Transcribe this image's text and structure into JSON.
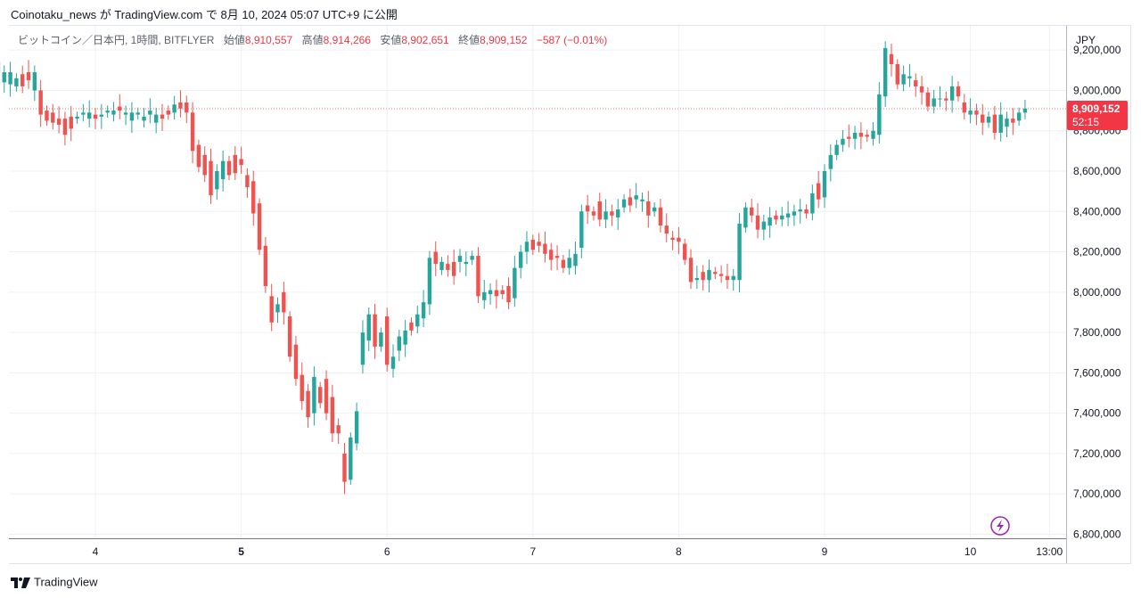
{
  "credit": "Coinotaku_news が TradingView.com で 8月 10, 2024 05:07 UTC+9 に公開",
  "legend": {
    "symbol": "ビットコイン／日本円, 1時間, BITFLYER",
    "open_label": "始値",
    "open": "8,910,557",
    "high_label": "高値",
    "high": "8,914,266",
    "low_label": "安値",
    "low": "8,902,651",
    "close_label": "終値",
    "close": "8,909,152",
    "change": "−587 (−0.01%)"
  },
  "currency": "JPY",
  "last_price_label": {
    "price": "8,909,152",
    "countdown": "52:15"
  },
  "brand": "TradingView",
  "colors": {
    "up": "#26a69a",
    "down": "#ef5350",
    "grid": "#eef0f4",
    "accent": "#9c27b0"
  },
  "chart_data": {
    "type": "candlestick",
    "y_ticks": [
      "9,200,000",
      "9,000,000",
      "8,800,000",
      "8,600,000",
      "8,400,000",
      "8,200,000",
      "8,000,000",
      "7,800,000",
      "7,600,000",
      "7,400,000",
      "7,200,000",
      "7,000,000",
      "6,800,000"
    ],
    "y_tick_values": [
      9200000,
      9000000,
      8800000,
      8600000,
      8400000,
      8200000,
      8000000,
      7800000,
      7600000,
      7400000,
      7200000,
      7000000,
      6800000
    ],
    "ylim": [
      6780000,
      9320000
    ],
    "x_ticks": [
      {
        "label": "4",
        "day": 4.0,
        "bold": false
      },
      {
        "label": "5",
        "day": 5.0,
        "bold": true
      },
      {
        "label": "6",
        "day": 6.0,
        "bold": false
      },
      {
        "label": "7",
        "day": 7.0,
        "bold": false
      },
      {
        "label": "8",
        "day": 8.0,
        "bold": false
      },
      {
        "label": "9",
        "day": 9.0,
        "bold": false
      },
      {
        "label": "10",
        "day": 10.0,
        "bold": false
      },
      {
        "label": "13:00",
        "day": 10.5417,
        "bold": false
      }
    ],
    "candle_points": [
      [
        9080000,
        9020000
      ],
      [
        9120000,
        9040000
      ],
      [
        9160000,
        9080000
      ],
      [
        9030000,
        9160000
      ],
      [
        9070000,
        9040000
      ],
      [
        9060000,
        9100000
      ],
      [
        9050000,
        9130000
      ],
      [
        9090000,
        9140000
      ],
      [
        9040000,
        9090000
      ],
      [
        9030000,
        9090000
      ],
      [
        9020000,
        9060000
      ],
      [
        9080000,
        9020000
      ],
      [
        9090000,
        9050000
      ],
      [
        9000000,
        9090000
      ],
      [
        9000000,
        8880000
      ],
      [
        8900000,
        8850000
      ],
      [
        8890000,
        8840000
      ],
      [
        8860000,
        8830000
      ],
      [
        8860000,
        8780000
      ],
      [
        8870000,
        8810000
      ],
      [
        8860000,
        8870000
      ],
      [
        8880000,
        8890000
      ],
      [
        8860000,
        8890000
      ],
      [
        8880000,
        8860000
      ],
      [
        8870000,
        8880000
      ],
      [
        8890000,
        8900000
      ],
      [
        8880000,
        8900000
      ],
      [
        8920000,
        8900000
      ],
      [
        8880000,
        8890000
      ],
      [
        8850000,
        8890000
      ],
      [
        8880000,
        8890000
      ],
      [
        8850000,
        8870000
      ],
      [
        8880000,
        8900000
      ],
      [
        8840000,
        8880000
      ],
      [
        8880000,
        8860000
      ],
      [
        8900000,
        8880000
      ],
      [
        8890000,
        8930000
      ],
      [
        8940000,
        8910000
      ],
      [
        8940000,
        8890000
      ],
      [
        8890000,
        8700000
      ],
      [
        8730000,
        8620000
      ],
      [
        8680000,
        8580000
      ],
      [
        8650000,
        8480000
      ],
      [
        8510000,
        8600000
      ],
      [
        8560000,
        8650000
      ],
      [
        8650000,
        8580000
      ],
      [
        8680000,
        8590000
      ],
      [
        8660000,
        8630000
      ],
      [
        8580000,
        8520000
      ],
      [
        8550000,
        8390000
      ],
      [
        8440000,
        8210000
      ],
      [
        8230000,
        8030000
      ],
      [
        7980000,
        7850000
      ],
      [
        7900000,
        7940000
      ],
      [
        8000000,
        7900000
      ],
      [
        7880000,
        7680000
      ],
      [
        7740000,
        7570000
      ],
      [
        7590000,
        7460000
      ],
      [
        7510000,
        7380000
      ],
      [
        7400000,
        7580000
      ],
      [
        7530000,
        7450000
      ],
      [
        7570000,
        7400000
      ],
      [
        7480000,
        7300000
      ],
      [
        7340000,
        7300000
      ],
      [
        7200000,
        7060000
      ],
      [
        7070000,
        7280000
      ],
      [
        7250000,
        7410000
      ],
      [
        7640000,
        7800000
      ],
      [
        7760000,
        7890000
      ],
      [
        7890000,
        7730000
      ],
      [
        7730000,
        7800000
      ],
      [
        7880000,
        7640000
      ],
      [
        7620000,
        7680000
      ],
      [
        7710000,
        7780000
      ],
      [
        7740000,
        7810000
      ],
      [
        7850000,
        7810000
      ],
      [
        7830000,
        7890000
      ],
      [
        7870000,
        7950000
      ],
      [
        7940000,
        8170000
      ],
      [
        8200000,
        8140000
      ],
      [
        8110000,
        8150000
      ],
      [
        8140000,
        8110000
      ],
      [
        8150000,
        8080000
      ],
      [
        8150000,
        8180000
      ],
      [
        8140000,
        8150000
      ],
      [
        8160000,
        8180000
      ],
      [
        8180000,
        7980000
      ],
      [
        7960000,
        8000000
      ],
      [
        7990000,
        8010000
      ],
      [
        8010000,
        7980000
      ],
      [
        8010000,
        7990000
      ],
      [
        8030000,
        7950000
      ],
      [
        7970000,
        8120000
      ],
      [
        8120000,
        8200000
      ],
      [
        8200000,
        8250000
      ],
      [
        8260000,
        8210000
      ],
      [
        8250000,
        8230000
      ],
      [
        8240000,
        8190000
      ],
      [
        8210000,
        8160000
      ],
      [
        8180000,
        8170000
      ],
      [
        8160000,
        8120000
      ],
      [
        8120000,
        8170000
      ],
      [
        8130000,
        8190000
      ],
      [
        8220000,
        8400000
      ],
      [
        8430000,
        8400000
      ],
      [
        8400000,
        8380000
      ],
      [
        8450000,
        8360000
      ],
      [
        8360000,
        8400000
      ],
      [
        8400000,
        8380000
      ],
      [
        8370000,
        8410000
      ],
      [
        8420000,
        8460000
      ],
      [
        8470000,
        8430000
      ],
      [
        8460000,
        8480000
      ],
      [
        8450000,
        8460000
      ],
      [
        8450000,
        8380000
      ],
      [
        8400000,
        8420000
      ],
      [
        8420000,
        8330000
      ],
      [
        8330000,
        8290000
      ],
      [
        8270000,
        8260000
      ],
      [
        8270000,
        8250000
      ],
      [
        8240000,
        8160000
      ],
      [
        8170000,
        8050000
      ],
      [
        8060000,
        8070000
      ],
      [
        8100000,
        8060000
      ],
      [
        8060000,
        8110000
      ],
      [
        8100000,
        8090000
      ],
      [
        8090000,
        8080000
      ],
      [
        8080000,
        8060000
      ],
      [
        8060000,
        8080000
      ],
      [
        8060000,
        8340000
      ],
      [
        8320000,
        8420000
      ],
      [
        8420000,
        8380000
      ],
      [
        8380000,
        8310000
      ],
      [
        8310000,
        8350000
      ],
      [
        8330000,
        8370000
      ],
      [
        8380000,
        8360000
      ],
      [
        8360000,
        8380000
      ],
      [
        8370000,
        8390000
      ],
      [
        8380000,
        8400000
      ],
      [
        8400000,
        8410000
      ],
      [
        8410000,
        8390000
      ],
      [
        8390000,
        8490000
      ],
      [
        8540000,
        8460000
      ],
      [
        8470000,
        8600000
      ],
      [
        8610000,
        8680000
      ],
      [
        8680000,
        8730000
      ],
      [
        8730000,
        8760000
      ],
      [
        8770000,
        8760000
      ],
      [
        8760000,
        8790000
      ],
      [
        8790000,
        8770000
      ],
      [
        8780000,
        8770000
      ],
      [
        8760000,
        8800000
      ],
      [
        8780000,
        8980000
      ],
      [
        8970000,
        9210000
      ],
      [
        9180000,
        9130000
      ],
      [
        9130000,
        9030000
      ],
      [
        9030000,
        9080000
      ],
      [
        9060000,
        9070000
      ],
      [
        9050000,
        9020000
      ],
      [
        9020000,
        8990000
      ],
      [
        8990000,
        8920000
      ],
      [
        8920000,
        8960000
      ],
      [
        8960000,
        8960000
      ],
      [
        8960000,
        8950000
      ],
      [
        8950000,
        9020000
      ],
      [
        9020000,
        8970000
      ],
      [
        8940000,
        8890000
      ],
      [
        8880000,
        8900000
      ],
      [
        8900000,
        8880000
      ],
      [
        8880000,
        8840000
      ],
      [
        8840000,
        8870000
      ],
      [
        8880000,
        8790000
      ],
      [
        8790000,
        8880000
      ],
      [
        8820000,
        8860000
      ],
      [
        8860000,
        8840000
      ],
      [
        8850000,
        8890000
      ],
      [
        8890000,
        8910000
      ]
    ],
    "last_price": 8909152
  }
}
